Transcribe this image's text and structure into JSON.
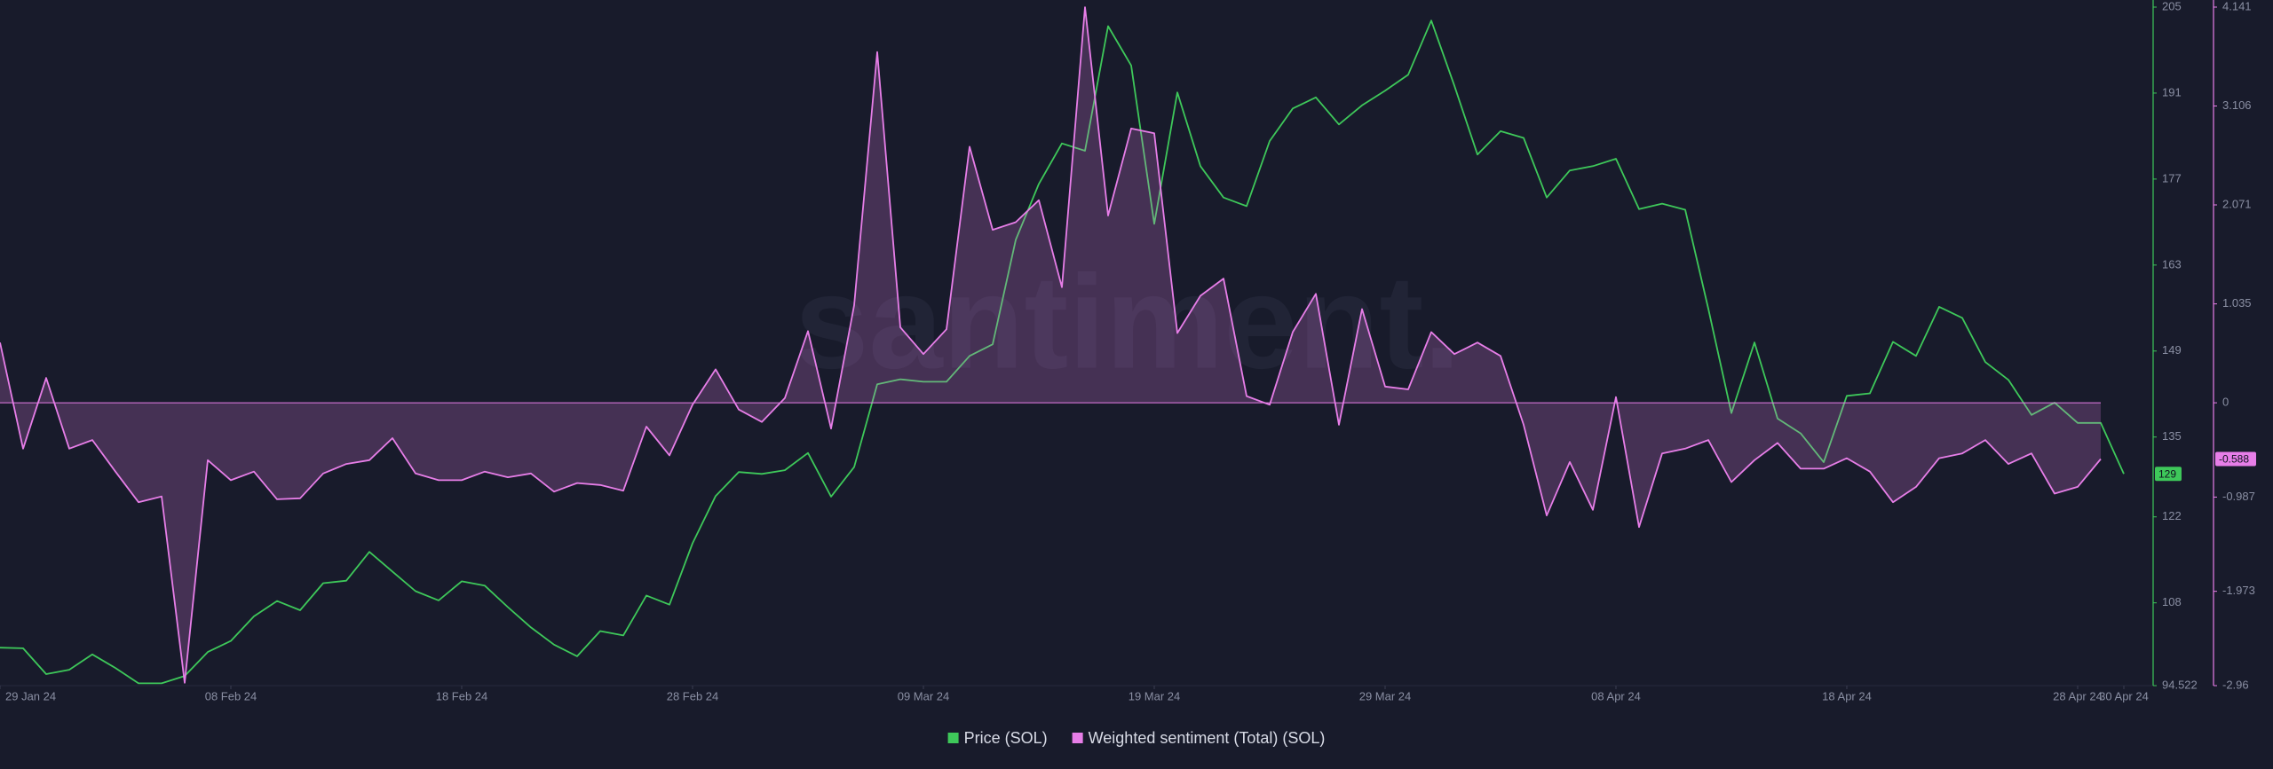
{
  "chart_data": {
    "type": "line",
    "watermark": "santiment.",
    "x": [
      "2024-01-29",
      "2024-01-30",
      "2024-01-31",
      "2024-02-01",
      "2024-02-02",
      "2024-02-03",
      "2024-02-04",
      "2024-02-05",
      "2024-02-06",
      "2024-02-07",
      "2024-02-08",
      "2024-02-09",
      "2024-02-10",
      "2024-02-11",
      "2024-02-12",
      "2024-02-13",
      "2024-02-14",
      "2024-02-15",
      "2024-02-16",
      "2024-02-17",
      "2024-02-18",
      "2024-02-19",
      "2024-02-20",
      "2024-02-21",
      "2024-02-22",
      "2024-02-23",
      "2024-02-24",
      "2024-02-25",
      "2024-02-26",
      "2024-02-27",
      "2024-02-28",
      "2024-02-29",
      "2024-03-01",
      "2024-03-02",
      "2024-03-03",
      "2024-03-04",
      "2024-03-05",
      "2024-03-06",
      "2024-03-07",
      "2024-03-08",
      "2024-03-09",
      "2024-03-10",
      "2024-03-11",
      "2024-03-12",
      "2024-03-13",
      "2024-03-14",
      "2024-03-15",
      "2024-03-16",
      "2024-03-17",
      "2024-03-18",
      "2024-03-19",
      "2024-03-20",
      "2024-03-21",
      "2024-03-22",
      "2024-03-23",
      "2024-03-24",
      "2024-03-25",
      "2024-03-26",
      "2024-03-27",
      "2024-03-28",
      "2024-03-29",
      "2024-03-30",
      "2024-03-31",
      "2024-04-01",
      "2024-04-02",
      "2024-04-03",
      "2024-04-04",
      "2024-04-05",
      "2024-04-06",
      "2024-04-07",
      "2024-04-08",
      "2024-04-09",
      "2024-04-10",
      "2024-04-11",
      "2024-04-12",
      "2024-04-13",
      "2024-04-14",
      "2024-04-15",
      "2024-04-16",
      "2024-04-17",
      "2024-04-18",
      "2024-04-19",
      "2024-04-20",
      "2024-04-21",
      "2024-04-22",
      "2024-04-23",
      "2024-04-24",
      "2024-04-25",
      "2024-04-26",
      "2024-04-27",
      "2024-04-28",
      "2024-04-29",
      "2024-04-30"
    ],
    "xlim": [
      "2024-01-29",
      "2024-04-30"
    ],
    "xticks": [
      {
        "value": "2024-01-29",
        "label": "29 Jan 24"
      },
      {
        "value": "2024-02-08",
        "label": "08 Feb 24"
      },
      {
        "value": "2024-02-18",
        "label": "18 Feb 24"
      },
      {
        "value": "2024-02-28",
        "label": "28 Feb 24"
      },
      {
        "value": "2024-03-09",
        "label": "09 Mar 24"
      },
      {
        "value": "2024-03-19",
        "label": "19 Mar 24"
      },
      {
        "value": "2024-03-29",
        "label": "29 Mar 24"
      },
      {
        "value": "2024-04-08",
        "label": "08 Apr 24"
      },
      {
        "value": "2024-04-18",
        "label": "18 Apr 24"
      },
      {
        "value": "2024-04-28",
        "label": "28 Apr 24"
      },
      {
        "value": "2024-04-30",
        "label": "30 Apr 24"
      }
    ],
    "ylim": [
      94.522,
      205
    ],
    "yticks": [
      94.522,
      108,
      122,
      135,
      149,
      163,
      177,
      191,
      205
    ],
    "y2lim": [
      -2.96,
      4.141
    ],
    "y2ticks": [
      -2.96,
      -1.973,
      -0.987,
      0,
      1.035,
      2.071,
      3.106,
      4.141
    ],
    "legend": "bottom",
    "series": [
      {
        "name": "Price (SOL)",
        "color": "#3ec85a",
        "axis": "y",
        "values": [
          100.7,
          100.6,
          96.4,
          97.1,
          99.6,
          97.4,
          94.9,
          94.9,
          96.1,
          100.0,
          101.8,
          105.8,
          108.3,
          106.8,
          111.2,
          111.6,
          116.3,
          113.1,
          109.9,
          108.4,
          111.5,
          110.8,
          107.3,
          104.0,
          101.2,
          99.3,
          103.4,
          102.7,
          109.2,
          107.7,
          117.7,
          125.4,
          129.3,
          129.0,
          129.6,
          132.4,
          125.3,
          130.1,
          143.6,
          144.4,
          144.0,
          144.0,
          148.2,
          150.1,
          167.1,
          176.2,
          182.8,
          181.6,
          201.9,
          195.5,
          169.7,
          191.1,
          179.1,
          174.0,
          172.6,
          183.2,
          188.5,
          190.3,
          185.9,
          189.0,
          191.4,
          194.0,
          202.8,
          192.2,
          181.0,
          184.8,
          183.7,
          174.0,
          178.4,
          179.1,
          180.3,
          172.1,
          173.0,
          172.0,
          155.9,
          138.9,
          150.4,
          138.0,
          135.6,
          130.9,
          141.7,
          142.1,
          150.5,
          148.2,
          156.2,
          154.4,
          147.2,
          144.3,
          138.6,
          140.6,
          137.3,
          137.3,
          129
        ]
      },
      {
        "name": "Weighted sentiment (Total) (SOL)",
        "color": "#e77ee8",
        "axis": "y2",
        "values": [
          0.63,
          -0.48,
          0.26,
          -0.48,
          -0.39,
          -0.72,
          -1.04,
          -0.98,
          -2.93,
          -0.6,
          -0.81,
          -0.72,
          -1.01,
          -1.0,
          -0.74,
          -0.64,
          -0.6,
          -0.37,
          -0.74,
          -0.81,
          -0.81,
          -0.72,
          -0.78,
          -0.74,
          -0.93,
          -0.84,
          -0.86,
          -0.92,
          -0.25,
          -0.55,
          -0.02,
          0.35,
          -0.07,
          -0.2,
          0.05,
          0.75,
          -0.27,
          1.02,
          3.67,
          0.79,
          0.51,
          0.77,
          2.68,
          1.81,
          1.89,
          2.12,
          1.21,
          4.14,
          1.96,
          2.87,
          2.82,
          0.73,
          1.12,
          1.3,
          0.07,
          -0.02,
          0.74,
          1.14,
          -0.23,
          0.98,
          0.17,
          0.14,
          0.74,
          0.51,
          0.63,
          0.49,
          -0.23,
          -1.18,
          -0.62,
          -1.12,
          0.06,
          -1.3,
          -0.53,
          -0.48,
          -0.39,
          -0.83,
          -0.6,
          -0.42,
          -0.69,
          -0.69,
          -0.58,
          -0.72,
          -1.04,
          -0.88,
          -0.58,
          -0.53,
          -0.39,
          -0.64,
          -0.53,
          -0.95,
          -0.88,
          -0.588,
          null
        ]
      }
    ]
  }
}
